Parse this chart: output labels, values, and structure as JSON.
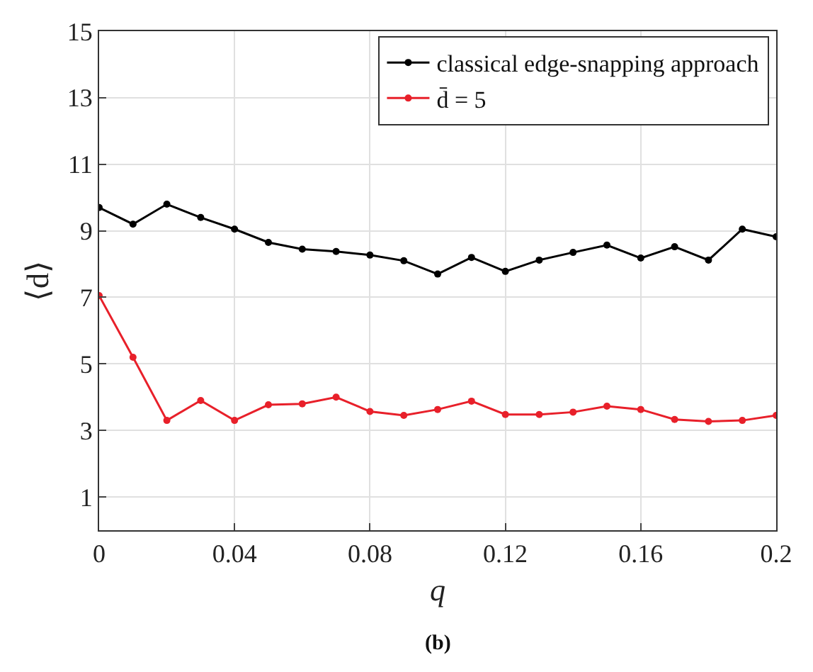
{
  "chart_data": {
    "type": "line",
    "xlabel": "q",
    "ylabel": "⟨d⟩",
    "annotations": [
      "(b)"
    ],
    "x": [
      0,
      0.01,
      0.02,
      0.03,
      0.04,
      0.05,
      0.06,
      0.07,
      0.08,
      0.09,
      0.1,
      0.11,
      0.12,
      0.13,
      0.14,
      0.15,
      0.16,
      0.17,
      0.18,
      0.19,
      0.2
    ],
    "series": [
      {
        "name": "classical edge-snapping approach",
        "color": "#000000",
        "values": [
          9.7,
          9.2,
          9.8,
          9.4,
          9.05,
          8.65,
          8.45,
          8.38,
          8.27,
          8.1,
          7.7,
          8.2,
          7.78,
          8.12,
          8.35,
          8.57,
          8.18,
          8.52,
          8.12,
          9.05,
          8.82
        ]
      },
      {
        "name": "d̄ = 5",
        "color": "#e8202a",
        "values": [
          7.05,
          5.2,
          3.3,
          3.9,
          3.3,
          3.77,
          3.8,
          4.0,
          3.57,
          3.45,
          3.63,
          3.88,
          3.48,
          3.48,
          3.55,
          3.73,
          3.63,
          3.33,
          3.27,
          3.3,
          3.45
        ]
      }
    ],
    "xlim": [
      0,
      0.2
    ],
    "xticks": [
      0,
      0.04,
      0.08,
      0.12,
      0.16,
      0.2
    ],
    "ylim": [
      0,
      15
    ],
    "yticks": [
      1,
      3,
      5,
      7,
      9,
      11,
      13,
      15
    ],
    "grid": true,
    "legend": "top right",
    "marker": "circle",
    "line_style": "solid"
  }
}
